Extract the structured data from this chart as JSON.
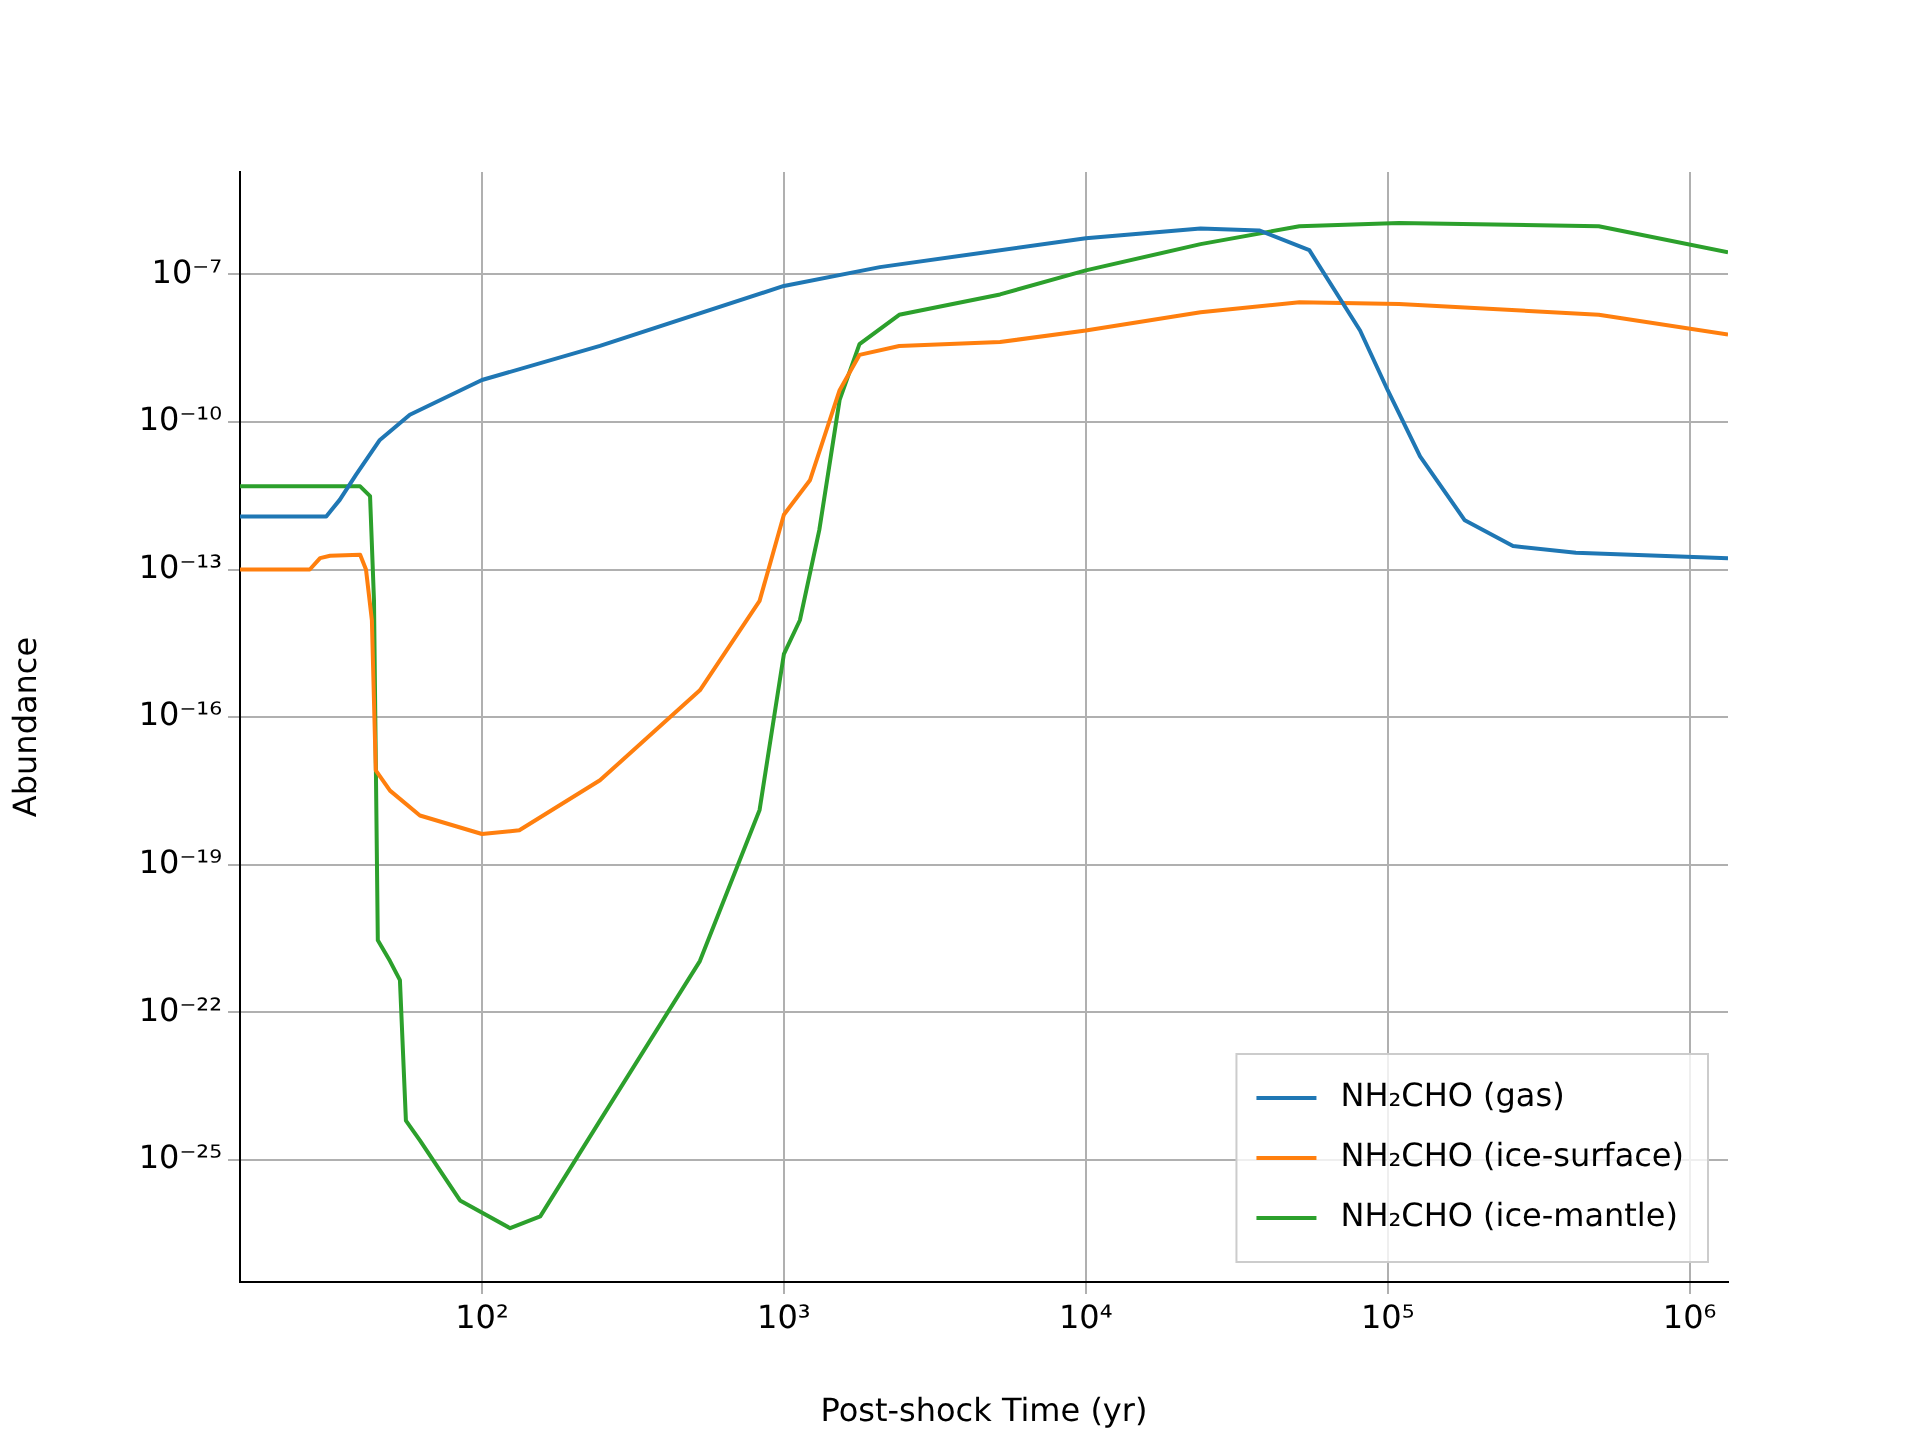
{
  "chart_data": {
    "type": "line",
    "xlabel": "Post-shock Time (yr)",
    "ylabel": "Abundance",
    "log": "xy",
    "grid": true,
    "legend": "bottom right",
    "xlim": [
      15.8,
      1340000
    ],
    "ylim": [
      3.3e-28,
      1.2e-05
    ],
    "xticks": [
      {
        "value": 100,
        "label": "10²"
      },
      {
        "value": 1000,
        "label": "10³"
      },
      {
        "value": 10000,
        "label": "10⁴"
      },
      {
        "value": 100000,
        "label": "10⁵"
      },
      {
        "value": 1000000,
        "label": "10⁶"
      }
    ],
    "yticks": [
      {
        "value": 1e-07,
        "label": "10⁻⁷"
      },
      {
        "value": 1e-10,
        "label": "10⁻¹⁰"
      },
      {
        "value": 1e-13,
        "label": "10⁻¹³"
      },
      {
        "value": 1e-16,
        "label": "10⁻¹⁶"
      },
      {
        "value": 1e-19,
        "label": "10⁻¹⁹"
      },
      {
        "value": 1e-22,
        "label": "10⁻²²"
      },
      {
        "value": 1e-25,
        "label": "10⁻²⁵"
      }
    ],
    "series": [
      {
        "name": "NH₂CHO (gas)",
        "color": "#1f77b4",
        "x": [
          15.8,
          30.5,
          33.8,
          38.3,
          45.9,
          57.7,
          100,
          246,
          1000,
          2080,
          10000,
          24000,
          37500,
          55000,
          81000,
          100000,
          128000,
          180000,
          260000,
          420000,
          1340000
        ],
        "values": [
          1.2e-12,
          1.2e-12,
          2.6e-12,
          8.5e-12,
          4.3e-11,
          1.4e-10,
          7.1e-10,
          3.5e-09,
          5.8e-08,
          1.4e-07,
          5.4e-07,
          8.5e-07,
          7.8e-07,
          3.1e-07,
          7.2e-09,
          4.4e-10,
          2e-11,
          1e-12,
          3e-13,
          2.2e-13,
          1.7e-13
        ]
      },
      {
        "name": "NH₂CHO (ice-surface)",
        "color": "#ff7f0e",
        "x": [
          15.8,
          26.9,
          29.1,
          31.4,
          39.5,
          41.3,
          43.2,
          44.5,
          49.6,
          62.3,
          100,
          133,
          246,
          527,
          831,
          1000,
          1220,
          1530,
          1780,
          2410,
          5200,
          10000,
          24000,
          51000,
          109000,
          500000,
          1340000
        ],
        "values": [
          1e-13,
          1e-13,
          1.7e-13,
          1.9e-13,
          2e-13,
          1e-13,
          9.3e-15,
          8.3e-18,
          3.2e-18,
          1e-18,
          4.2e-19,
          5e-19,
          5.2e-18,
          3.5e-16,
          2.3e-14,
          1.3e-12,
          6.5e-12,
          4.4e-10,
          2.3e-09,
          3.5e-09,
          4.2e-09,
          7.2e-09,
          1.7e-08,
          2.7e-08,
          2.5e-08,
          1.5e-08,
          6e-09
        ]
      },
      {
        "name": "NH₂CHO (ice-mantle)",
        "color": "#2ca02c",
        "x": [
          15.8,
          39.5,
          42.6,
          43.9,
          45.2,
          49.6,
          53.5,
          56,
          62.3,
          84.6,
          124,
          156,
          246,
          527,
          831,
          1000,
          1130,
          1310,
          1530,
          1780,
          2410,
          5200,
          10000,
          24000,
          51000,
          109000,
          500000,
          1340000
        ],
        "values": [
          4.9e-12,
          4.9e-12,
          3.1e-12,
          2.3e-14,
          2.9e-21,
          1.1e-21,
          4.5e-22,
          6.3e-25,
          2.5e-25,
          1.5e-26,
          4.1e-27,
          7.1e-27,
          6.3e-25,
          1.1e-21,
          1.3e-18,
          1.9e-15,
          9.3e-15,
          6.3e-13,
          2.8e-10,
          3.8e-09,
          1.5e-08,
          3.9e-08,
          1.2e-07,
          4.1e-07,
          9.5e-07,
          1.1e-06,
          9.5e-07,
          2.8e-07
        ]
      }
    ]
  }
}
